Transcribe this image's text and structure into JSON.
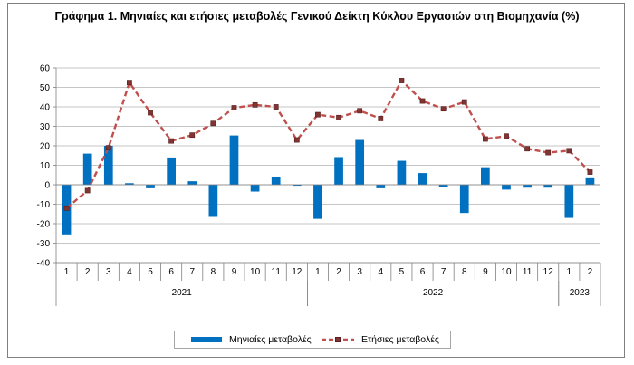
{
  "chart_data": {
    "type": "bar",
    "title": "Γράφημα 1. Μηνιαίες και ετήσιες μεταβολές  Γενικού Δείκτη Κύκλου Εργασιών στη Βιομηχανία (%)",
    "categories": [
      "1",
      "2",
      "3",
      "4",
      "5",
      "6",
      "7",
      "8",
      "9",
      "10",
      "11",
      "12",
      "1",
      "2",
      "3",
      "4",
      "5",
      "6",
      "7",
      "8",
      "9",
      "10",
      "11",
      "12",
      "1",
      "2"
    ],
    "year_groups": [
      {
        "label": "2021",
        "start": 0,
        "end": 11
      },
      {
        "label": "2022",
        "start": 12,
        "end": 23
      },
      {
        "label": "2023",
        "start": 24,
        "end": 25
      }
    ],
    "ylim": [
      -40,
      60
    ],
    "yticks": [
      -40,
      -30,
      -20,
      -10,
      0,
      10,
      20,
      30,
      40,
      50,
      60
    ],
    "grid": true,
    "legend_position": "bottom",
    "series": [
      {
        "name": "Μηνιαίες μεταβολές",
        "type": "bar",
        "color": "#0070c0",
        "values": [
          -25.5,
          16,
          20,
          0.8,
          -1.8,
          14,
          1.8,
          -16.5,
          25.3,
          -3.5,
          4.2,
          -0.5,
          -17.5,
          14.2,
          23,
          -1.8,
          12.3,
          6,
          -1,
          -14.5,
          9,
          -2.5,
          -1.5,
          -1.5,
          -17,
          3.8
        ]
      },
      {
        "name": "Ετήσιες μεταβολές",
        "type": "line",
        "color": "#c0504d",
        "values": [
          -12,
          -3,
          19,
          52.5,
          37,
          22.5,
          25.5,
          31.5,
          39.5,
          41,
          40,
          23,
          36,
          34.5,
          38,
          34,
          53.5,
          43,
          39,
          42.5,
          23.5,
          25,
          18.5,
          16.5,
          17.5,
          6.5
        ]
      }
    ]
  }
}
